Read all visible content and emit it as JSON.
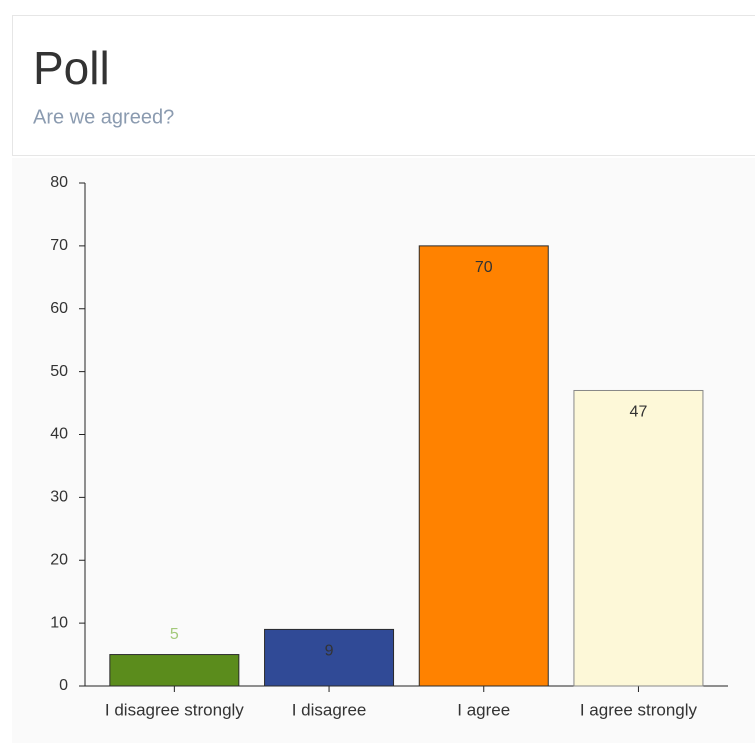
{
  "chart_data": {
    "type": "bar",
    "title": "Poll",
    "subtitle": "Are we agreed?",
    "categories": [
      "I disagree strongly",
      "I disagree",
      "I agree",
      "I agree strongly"
    ],
    "values": [
      5,
      9,
      70,
      47
    ],
    "colors": [
      "#5b8c1c",
      "#304a96",
      "#ff8200",
      "#fdf8d8"
    ],
    "value_label_colors": [
      "#a3c97a",
      "#333333",
      "#333333",
      "#333333"
    ],
    "ylim": [
      0,
      80
    ],
    "yticks": [
      0,
      10,
      20,
      30,
      40,
      50,
      60,
      70,
      80
    ],
    "grid": false
  }
}
